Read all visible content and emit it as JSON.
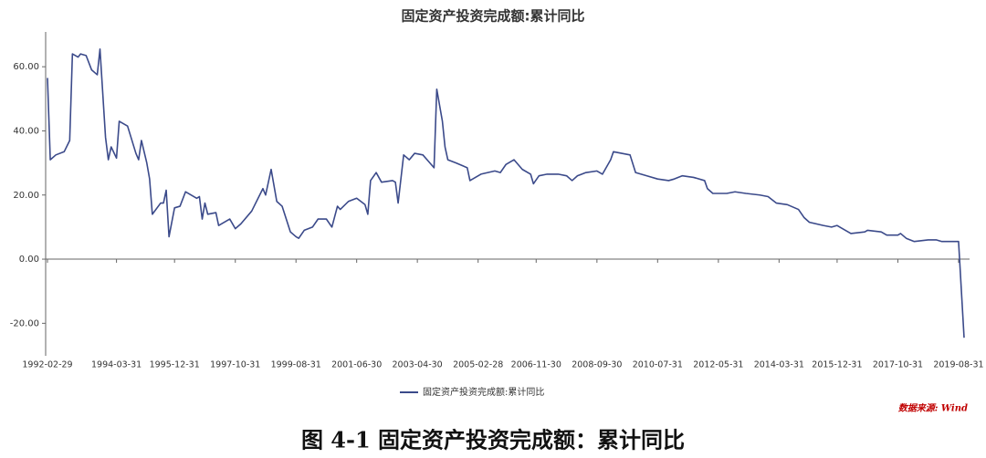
{
  "chart_data": {
    "type": "line",
    "title": "固定资产投资完成额:累计同比",
    "x": [
      "1992-02-29",
      "1992-03-31",
      "1992-05-31",
      "1992-08-31",
      "1992-10-31",
      "1992-11-30",
      "1993-01-31",
      "1993-02-28",
      "1993-04-30",
      "1993-06-30",
      "1993-08-31",
      "1993-09-30",
      "1993-11-30",
      "1993-12-31",
      "1994-01-31",
      "1994-03-31",
      "1994-04-30",
      "1994-07-31",
      "1994-10-31",
      "1994-11-30",
      "1994-12-31",
      "1995-02-28",
      "1995-03-31",
      "1995-04-30",
      "1995-07-31",
      "1995-08-31",
      "1995-09-30",
      "1995-10-31",
      "1995-12-31",
      "1996-02-29",
      "1996-04-30",
      "1996-08-31",
      "1996-09-30",
      "1996-10-31",
      "1996-11-30",
      "1996-12-31",
      "1997-03-31",
      "1997-04-30",
      "1997-08-31",
      "1997-10-31",
      "1997-12-31",
      "1998-04-30",
      "1998-08-31",
      "1998-09-30",
      "1998-11-30",
      "1999-01-31",
      "1999-03-31",
      "1999-06-30",
      "1999-08-31",
      "1999-09-30",
      "1999-11-30",
      "2000-02-29",
      "2000-04-30",
      "2000-07-31",
      "2000-09-30",
      "2000-11-30",
      "2000-12-31",
      "2001-03-31",
      "2001-06-30",
      "2001-09-30",
      "2001-10-31",
      "2001-11-30",
      "2002-01-31",
      "2002-03-31",
      "2002-07-31",
      "2002-08-31",
      "2002-09-30",
      "2002-11-30",
      "2003-01-31",
      "2003-03-31",
      "2003-06-30",
      "2003-08-31",
      "2003-10-31",
      "2003-11-30",
      "2004-01-31",
      "2004-02-29",
      "2004-03-31",
      "2004-06-30",
      "2004-10-31",
      "2004-11-30",
      "2005-03-31",
      "2005-08-31",
      "2005-10-31",
      "2005-12-31",
      "2006-03-31",
      "2006-06-30",
      "2006-09-30",
      "2006-10-31",
      "2006-12-31",
      "2007-03-31",
      "2007-07-31",
      "2007-10-31",
      "2007-12-31",
      "2008-02-29",
      "2008-05-31",
      "2008-09-30",
      "2008-11-30",
      "2009-02-28",
      "2009-03-31",
      "2009-06-30",
      "2009-09-30",
      "2009-11-30",
      "2010-03-31",
      "2010-07-31",
      "2010-11-30",
      "2011-01-31",
      "2011-04-30",
      "2011-08-31",
      "2011-12-31",
      "2012-01-31",
      "2012-03-31",
      "2012-08-31",
      "2012-11-30",
      "2013-03-31",
      "2013-08-31",
      "2013-11-30",
      "2014-02-28",
      "2014-06-30",
      "2014-10-31",
      "2014-12-31",
      "2015-02-28",
      "2015-07-31",
      "2015-10-31",
      "2015-12-31",
      "2016-03-31",
      "2016-05-31",
      "2016-10-31",
      "2016-11-30",
      "2017-04-30",
      "2017-06-30",
      "2017-10-31",
      "2017-11-30",
      "2018-01-31",
      "2018-04-30",
      "2018-09-30",
      "2018-12-31",
      "2019-02-28",
      "2019-05-31",
      "2019-08-31",
      "2019-10-31"
    ],
    "series": [
      {
        "name": "固定资产投资完成额:累计同比",
        "color": "#3b4a8a",
        "values": [
          56.5,
          31,
          32.5,
          33.5,
          37,
          64,
          63,
          64,
          63.5,
          59,
          57.5,
          65.5,
          38,
          31,
          35,
          31.5,
          43,
          41.5,
          33,
          31,
          37,
          30,
          25,
          14,
          17.5,
          17.5,
          21.5,
          7,
          16,
          16.5,
          21,
          19,
          19.5,
          12.5,
          17.5,
          14,
          14.5,
          10.5,
          12.5,
          9.5,
          11,
          15,
          22,
          20,
          28,
          18,
          16.5,
          8.5,
          7,
          6.5,
          9,
          10,
          12.5,
          12.5,
          10,
          16.5,
          15.5,
          18,
          19,
          17,
          14,
          24.5,
          27,
          24,
          24.5,
          24,
          17.5,
          32.5,
          31,
          33,
          32.5,
          30.5,
          28.5,
          53,
          43,
          35,
          31,
          30,
          28.5,
          24.5,
          26.5,
          27.5,
          27,
          29.5,
          31,
          28,
          26.5,
          23.5,
          26,
          26.5,
          26.5,
          26,
          24.5,
          26,
          27,
          27.5,
          26.5,
          31,
          33.5,
          33,
          32.5,
          27,
          26,
          25,
          24.5,
          25,
          26,
          25.5,
          24.5,
          22,
          20.5,
          20.5,
          21,
          20.5,
          20,
          19.5,
          17.5,
          17,
          15.5,
          13,
          11.5,
          10.5,
          10,
          10.5,
          9,
          8,
          8.5,
          9,
          8.5,
          7.5,
          7.5,
          8,
          6.5,
          5.5,
          6,
          6,
          5.5,
          5.5,
          5.5,
          -24.5
        ]
      }
    ],
    "xlim": [
      "1992-02-29",
      "2019-10-31"
    ],
    "xticks": [
      "1992-02-29",
      "1994-03-31",
      "1995-12-31",
      "1997-10-31",
      "1999-08-31",
      "2001-06-30",
      "2003-04-30",
      "2005-02-28",
      "2006-11-30",
      "2008-09-30",
      "2010-07-31",
      "2012-05-31",
      "2014-03-31",
      "2015-12-31",
      "2017-10-31",
      "2019-08-31"
    ],
    "ylim": [
      -30,
      70
    ],
    "yticks": [
      {
        "value": -20,
        "label": "-20.00"
      },
      {
        "value": 0,
        "label": "0.00"
      },
      {
        "value": 20,
        "label": "20.00"
      },
      {
        "value": 40,
        "label": "40.00"
      },
      {
        "value": 60,
        "label": "60.00"
      }
    ],
    "source": "数据来源: Wind",
    "caption": "图 4-1 固定资产投资完成额：累计同比"
  }
}
